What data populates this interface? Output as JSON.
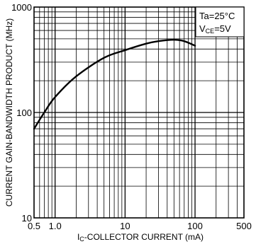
{
  "chart_data": {
    "type": "line",
    "x_scale": "log",
    "y_scale": "log",
    "xlim": [
      0.5,
      500
    ],
    "ylim": [
      10,
      1000
    ],
    "grid": true,
    "xlabel": {
      "prefix": "I",
      "sub": "C",
      "rest": "-COLLECTOR  CURRENT (mA)"
    },
    "ylabel": "CURRENT GAIN-BANDWIDTH PRODUCT (MHz)",
    "x_ticks": [
      {
        "value": 0.5,
        "label": "0.5"
      },
      {
        "value": 1,
        "label": "1.0"
      },
      {
        "value": 10,
        "label": "10"
      },
      {
        "value": 100,
        "label": "100"
      },
      {
        "value": 500,
        "label": "500"
      }
    ],
    "y_ticks": [
      {
        "value": 10,
        "label": "10"
      },
      {
        "value": 100,
        "label": "100"
      },
      {
        "value": 1000,
        "label": "1000"
      }
    ],
    "conditions": [
      {
        "text": "Ta=25°C"
      },
      {
        "prefix": "V",
        "sub": "CE",
        "rest": "=5V"
      }
    ],
    "legend_position": "top-right",
    "series": [
      {
        "x": [
          0.5,
          0.7,
          1,
          2,
          5,
          10,
          20,
          30,
          50,
          70,
          100
        ],
        "y": [
          70,
          100,
          140,
          220,
          330,
          390,
          450,
          475,
          490,
          475,
          430
        ]
      }
    ]
  }
}
